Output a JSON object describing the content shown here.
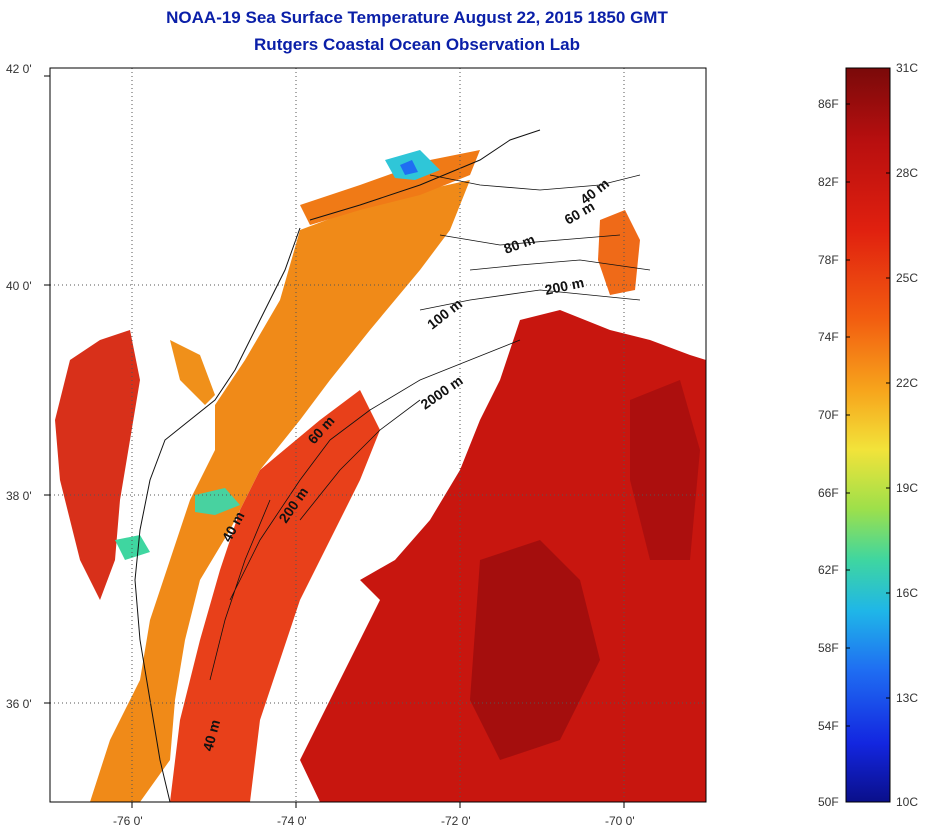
{
  "title": {
    "line1": "NOAA-19 Sea Surface Temperature August 22, 2015 1850 GMT",
    "line2": "Rutgers Coastal Ocean Observation Lab"
  },
  "map": {
    "lat_ticks": [
      "42 0'",
      "40 0'",
      "38 0'",
      "36 0'"
    ],
    "lon_ticks": [
      "-76 0'",
      "-74 0'",
      "-72 0'",
      "-70 0'"
    ],
    "grid": true,
    "contour_labels": [
      "40 m",
      "60 m",
      "80 m",
      "200 m",
      "100 m",
      "2000 m",
      "60 m",
      "200 m",
      "40 m",
      "40 m"
    ]
  },
  "colorbar": {
    "fahrenheit_labels": [
      "86F",
      "82F",
      "78F",
      "74F",
      "70F",
      "66F",
      "62F",
      "58F",
      "54F",
      "50F"
    ],
    "celsius_labels": [
      "31C",
      "28C",
      "25C",
      "22C",
      "19C",
      "16C",
      "13C",
      "10C"
    ],
    "colors": [
      "#7a0a0a",
      "#b80f0f",
      "#e0200f",
      "#f25c10",
      "#f7a51c",
      "#f2e33a",
      "#9ee04a",
      "#3fd6a0",
      "#1fb6e8",
      "#1f6ef2",
      "#1326e0",
      "#0a0f8a"
    ]
  }
}
